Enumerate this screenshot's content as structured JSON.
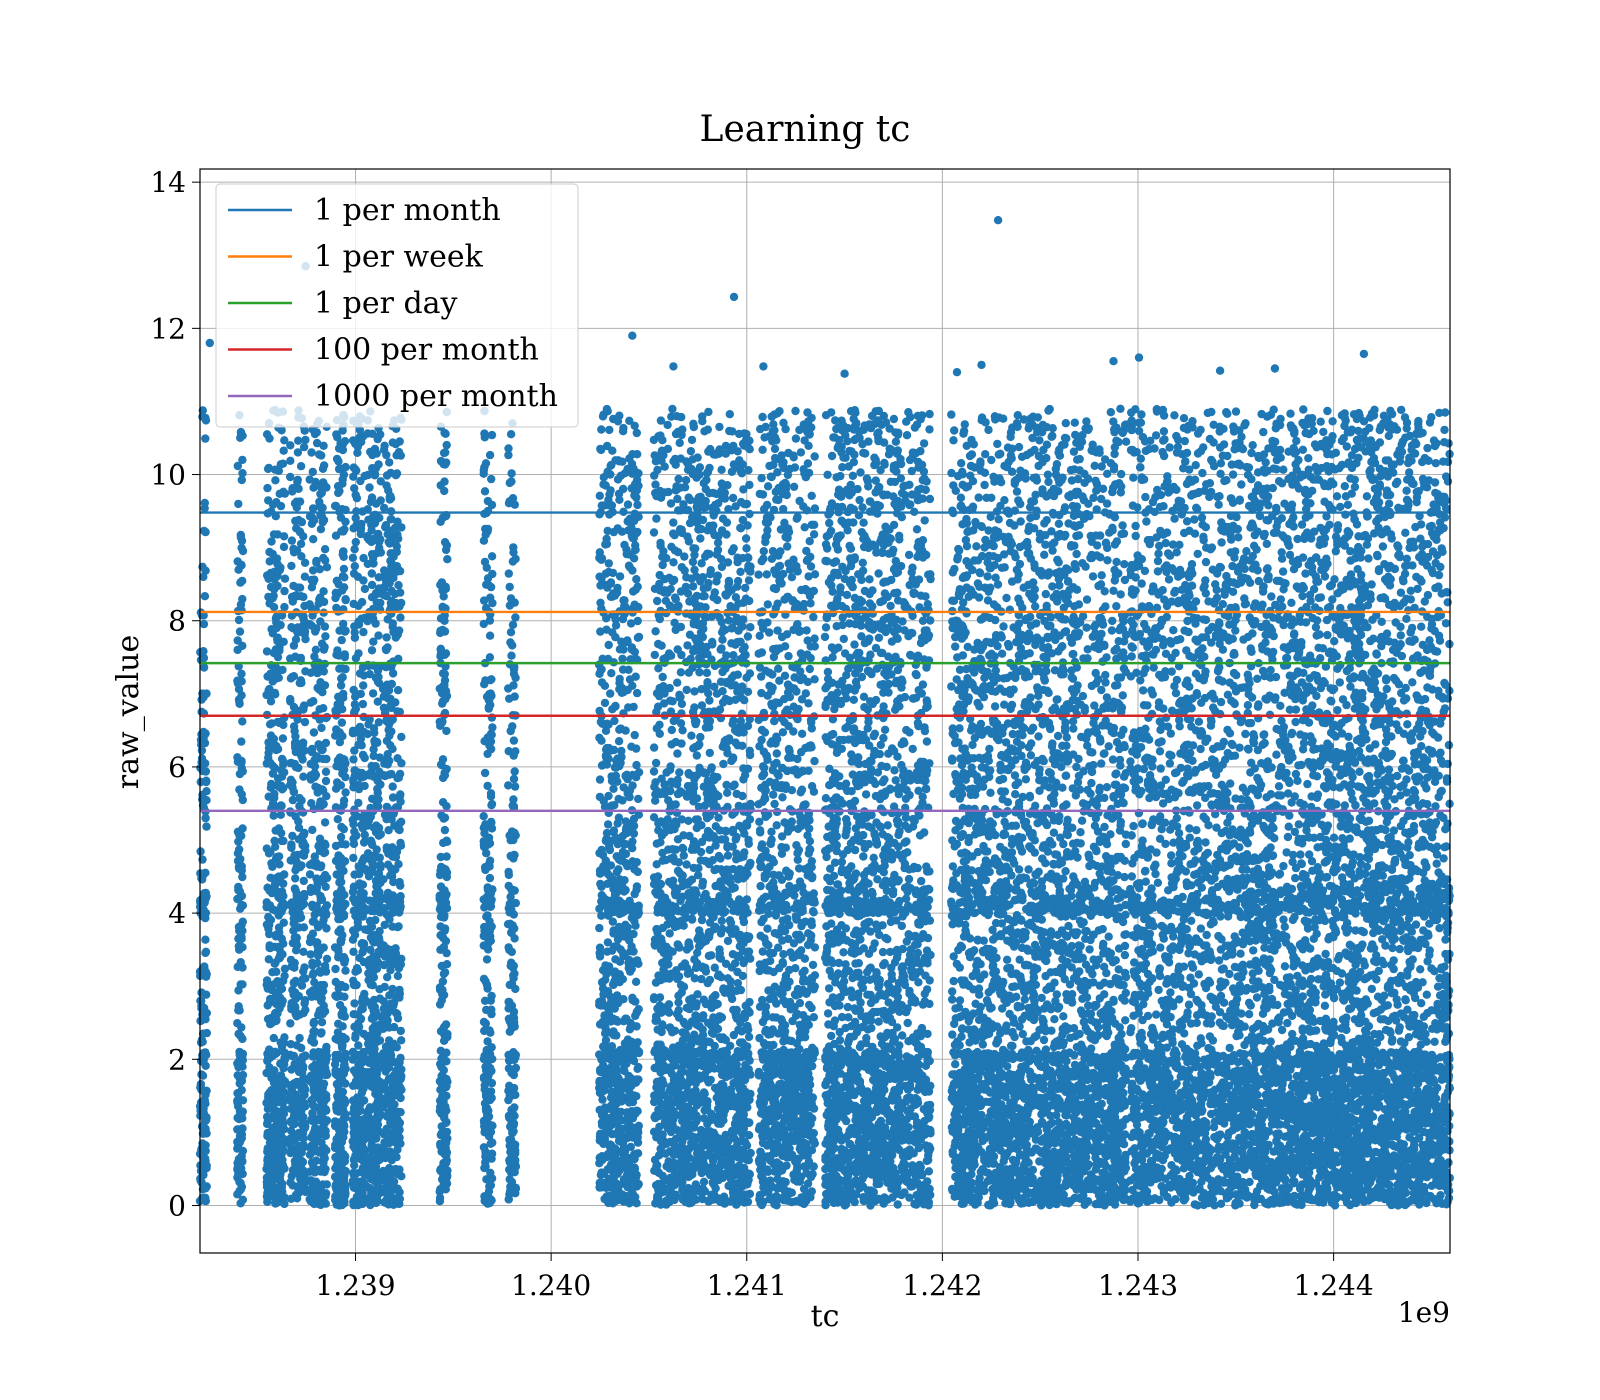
{
  "chart_data": {
    "type": "scatter",
    "title": "Learning tc",
    "xlabel": "tc",
    "ylabel": "raw_value",
    "x_offset_label": "1e9",
    "xlim": [
      1238205000,
      1244595000
    ],
    "ylim": [
      -0.65,
      14.18
    ],
    "x_ticks": [
      1239000000,
      1240000000,
      1241000000,
      1242000000,
      1243000000,
      1244000000
    ],
    "x_tick_labels": [
      "1.239",
      "1.240",
      "1.241",
      "1.242",
      "1.243",
      "1.244"
    ],
    "y_ticks": [
      0,
      2,
      4,
      6,
      8,
      10,
      12,
      14
    ],
    "y_tick_labels": [
      "0",
      "2",
      "4",
      "6",
      "8",
      "10",
      "12",
      "14"
    ],
    "grid": true,
    "legend_position": "top-left",
    "series": [
      {
        "name": "1 per month",
        "kind": "hline",
        "y": 9.48,
        "color": "#1f77b4"
      },
      {
        "name": "1 per week",
        "kind": "hline",
        "y": 8.12,
        "color": "#ff7f0e"
      },
      {
        "name": "1 per day",
        "kind": "hline",
        "y": 7.42,
        "color": "#2ca02c"
      },
      {
        "name": "100 per month",
        "kind": "hline",
        "y": 6.7,
        "color": "#d62728"
      },
      {
        "name": "1000 per month",
        "kind": "hline",
        "y": 5.4,
        "color": "#9467bd"
      }
    ],
    "scatter": {
      "color": "#1f77b4",
      "outliers": [
        {
          "x": 1242285000,
          "y": 13.48
        },
        {
          "x": 1240935000,
          "y": 12.43
        },
        {
          "x": 1238745000,
          "y": 12.85
        },
        {
          "x": 1240415000,
          "y": 11.9
        },
        {
          "x": 1244155000,
          "y": 11.65
        },
        {
          "x": 1242200000,
          "y": 11.5
        },
        {
          "x": 1242075000,
          "y": 11.4
        },
        {
          "x": 1241085000,
          "y": 11.48
        },
        {
          "x": 1243005000,
          "y": 11.6
        },
        {
          "x": 1242875000,
          "y": 11.55
        },
        {
          "x": 1243700000,
          "y": 11.45
        },
        {
          "x": 1238255000,
          "y": 11.8
        },
        {
          "x": 1240625000,
          "y": 11.48
        },
        {
          "x": 1241500000,
          "y": 11.38
        },
        {
          "x": 1243420000,
          "y": 11.42
        }
      ],
      "clusters": [
        {
          "x0": 1238205000,
          "x1": 1238240000,
          "weight": 0.5
        },
        {
          "x0": 1238395000,
          "x1": 1238425000,
          "weight": 0.45
        },
        {
          "x0": 1238545000,
          "x1": 1238640000,
          "weight": 1.3
        },
        {
          "x0": 1238665000,
          "x1": 1238745000,
          "weight": 1.0
        },
        {
          "x0": 1238765000,
          "x1": 1238855000,
          "weight": 1.1
        },
        {
          "x0": 1238895000,
          "x1": 1238950000,
          "weight": 0.9
        },
        {
          "x0": 1238985000,
          "x1": 1239050000,
          "weight": 0.9
        },
        {
          "x0": 1239060000,
          "x1": 1239130000,
          "weight": 1.0
        },
        {
          "x0": 1239140000,
          "x1": 1239235000,
          "weight": 1.2
        },
        {
          "x0": 1239430000,
          "x1": 1239470000,
          "weight": 0.6
        },
        {
          "x0": 1239655000,
          "x1": 1239700000,
          "weight": 0.6
        },
        {
          "x0": 1239780000,
          "x1": 1239820000,
          "weight": 0.5
        },
        {
          "x0": 1240245000,
          "x1": 1240450000,
          "weight": 2.3
        },
        {
          "x0": 1240525000,
          "x1": 1240820000,
          "weight": 3.0
        },
        {
          "x0": 1240820000,
          "x1": 1241020000,
          "weight": 2.1
        },
        {
          "x0": 1241060000,
          "x1": 1241350000,
          "weight": 2.9
        },
        {
          "x0": 1241400000,
          "x1": 1241780000,
          "weight": 4.4
        },
        {
          "x0": 1241780000,
          "x1": 1241940000,
          "weight": 1.4
        },
        {
          "x0": 1242045000,
          "x1": 1242480000,
          "weight": 4.6
        },
        {
          "x0": 1242480000,
          "x1": 1242940000,
          "weight": 4.6
        },
        {
          "x0": 1242960000,
          "x1": 1243580000,
          "weight": 5.6
        },
        {
          "x0": 1243580000,
          "x1": 1243930000,
          "weight": 3.6
        },
        {
          "x0": 1243930000,
          "x1": 1244230000,
          "weight": 3.6
        },
        {
          "x0": 1244230000,
          "x1": 1244595000,
          "weight": 3.9
        }
      ]
    }
  }
}
